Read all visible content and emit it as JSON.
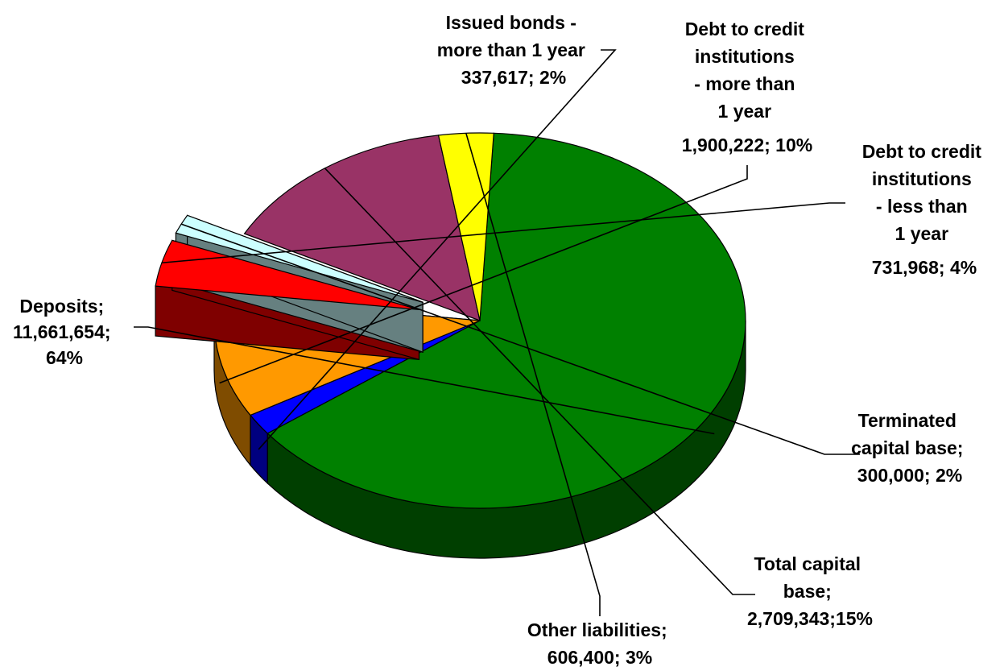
{
  "chart_data": {
    "type": "pie",
    "title": "",
    "three_d": true,
    "slices": [
      {
        "key": "deposits",
        "value": 11661654,
        "percent": 64,
        "color": "#008000",
        "side_color": "#003f00",
        "exploded": false,
        "label_lines": [
          "Deposits;",
          "11,661,654;",
          "64%"
        ]
      },
      {
        "key": "issued_bonds",
        "value": 337617,
        "percent": 2,
        "color": "#0000ff",
        "side_color": "#00007f",
        "exploded": false,
        "label_lines": [
          "Issued bonds -",
          "more than 1 year",
          "337,617; 2%"
        ]
      },
      {
        "key": "debt_credit_gt1",
        "value": 1900222,
        "percent": 10,
        "color": "#ff9900",
        "side_color": "#7f4c00",
        "exploded": false,
        "label_lines": [
          "Debt to credit",
          "institutions",
          "- more than",
          "1 year",
          "1,900,222; 10%"
        ]
      },
      {
        "key": "debt_credit_lt1",
        "value": 731968,
        "percent": 4,
        "color": "#ff0000",
        "side_color": "#7f0000",
        "exploded": true,
        "label_lines": [
          "Debt to credit",
          "institutions",
          "- less than",
          "1 year",
          "731,968; 4%"
        ]
      },
      {
        "key": "terminated_capital",
        "value": 300000,
        "percent": 2,
        "color": "#ccffff",
        "side_color": "#668080",
        "exploded": true,
        "label_lines": [
          "Terminated",
          "capital base;",
          "300,000; 2%"
        ]
      },
      {
        "key": "total_capital",
        "value": 2709343,
        "percent": 15,
        "color": "#993366",
        "side_color": "#4c1933",
        "exploded": false,
        "label_lines": [
          "Total capital",
          "base;",
          "2,709,343;15%"
        ]
      },
      {
        "key": "other_liabilities",
        "value": 606400,
        "percent": 3,
        "color": "#ffff00",
        "side_color": "#808000",
        "exploded": false,
        "label_lines": [
          "Other liabilities;",
          "606,400; 3%"
        ]
      }
    ]
  }
}
